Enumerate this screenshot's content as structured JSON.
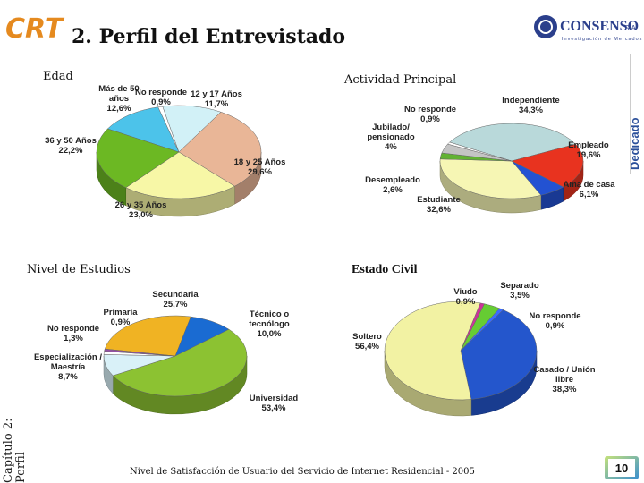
{
  "header": {
    "logo": "CRT",
    "title": "2. Perfil del Entrevistado",
    "brand": "CONSENSO",
    "brand_suffix": "S.A.",
    "tagline": "Investigación de Mercados"
  },
  "side_label": "Dedicado",
  "chapter": [
    "Capítulo 2:",
    "Perfil"
  ],
  "footer": "Nivel de Satisfacción de Usuario del Servicio de Internet Residencial - 2005",
  "page_number": "10",
  "chart_data": [
    {
      "type": "pie",
      "title": "Edad",
      "categories": [
        "Más de 50 años",
        "No responde",
        "12 y 17 Años",
        "18 y 25 Años",
        "26 y 35 Años",
        "36 y 50 Años"
      ],
      "values": [
        12.6,
        0.9,
        11.7,
        29.6,
        23.0,
        22.2
      ],
      "value_labels": [
        "12,6%",
        "0,9%",
        "11,7%",
        "29,6%",
        "23,0%",
        "22,2%"
      ],
      "colors": [
        "#4cc3ea",
        "#ffffff",
        "#d2f1f7",
        "#e9b697",
        "#f7f7a6",
        "#6cb823"
      ]
    },
    {
      "type": "pie",
      "title": "Actividad Principal",
      "categories": [
        "Independiente",
        "Empleado",
        "Ama de casa",
        "Estudiante",
        "Desempleado",
        "Jubilado/ pensionado",
        "No responde"
      ],
      "values": [
        34.3,
        19.6,
        6.1,
        32.6,
        2.6,
        4,
        0.9
      ],
      "value_labels": [
        "34,3%",
        "19,6%",
        "6,1%",
        "32,6%",
        "2,6%",
        "4%",
        "0,9%"
      ],
      "colors": [
        "#b9d9da",
        "#e8331f",
        "#2352d2",
        "#f6f6b4",
        "#62b232",
        "#c4c4c4",
        "#ffffff"
      ]
    },
    {
      "type": "pie",
      "title": "Nivel de Estudios",
      "categories": [
        "Secundaria",
        "Técnico o tecnólogo",
        "Universidad",
        "Especialización / Maestría",
        "No responde",
        "Primaria"
      ],
      "values": [
        25.7,
        10.0,
        53.4,
        8.7,
        1.3,
        0.9
      ],
      "value_labels": [
        "25,7%",
        "10,0%",
        "53,4%",
        "8,7%",
        "1,3%",
        "0,9%"
      ],
      "colors": [
        "#f0b323",
        "#1a6bd2",
        "#8cc232",
        "#d9f1f8",
        "#ffffff",
        "#9452a3"
      ]
    },
    {
      "type": "pie",
      "title": "Estado Civil",
      "categories": [
        "Viudo",
        "Separado",
        "No responde",
        "Casado / Unión libre",
        "Soltero"
      ],
      "values": [
        0.9,
        3.5,
        0.9,
        38.3,
        56.4
      ],
      "value_labels": [
        "0,9%",
        "3,5%",
        "0,9%",
        "38,3%",
        "56,4%"
      ],
      "colors": [
        "#cc3399",
        "#66cc33",
        "#3a6cff",
        "#2456cc",
        "#f2f2a3"
      ]
    }
  ]
}
